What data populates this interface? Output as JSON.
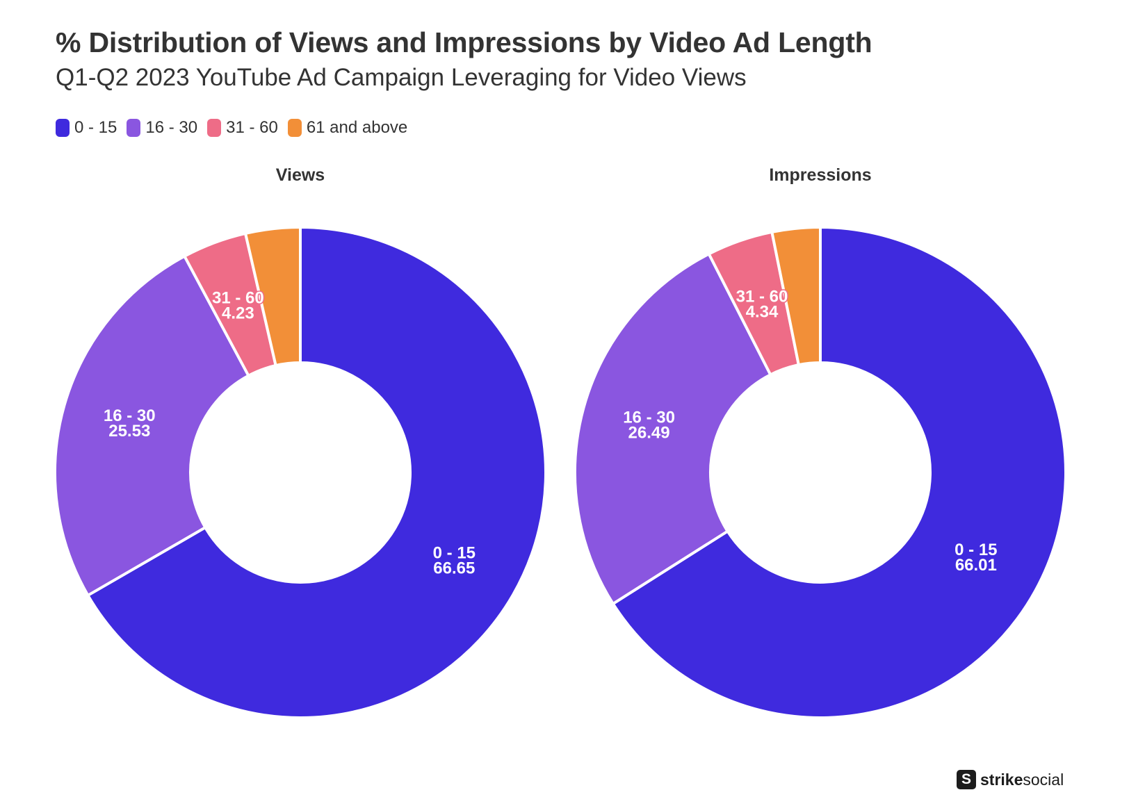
{
  "title": "% Distribution of Views and Impressions by Video Ad Length",
  "subtitle": "Q1-Q2 2023 YouTube Ad Campaign Leveraging for Video Views",
  "legend": [
    {
      "label": "0 - 15",
      "color": "#3f2ade"
    },
    {
      "label": "16 - 30",
      "color": "#8a56e0"
    },
    {
      "label": "31 - 60",
      "color": "#ee6c87"
    },
    {
      "label": "61 and above",
      "color": "#f28f38"
    }
  ],
  "brand": {
    "bold": "strike",
    "light": "social",
    "icon": "strike-social-logo-icon"
  },
  "chart_data": [
    {
      "type": "pie",
      "title": "Views",
      "categories": [
        "0 - 15",
        "16 - 30",
        "31 - 60",
        "61 and above"
      ],
      "values": [
        66.65,
        25.53,
        4.23,
        3.59
      ],
      "labels": [
        "66.65",
        "25.53",
        "4.23",
        ""
      ],
      "colors": [
        "#3f2ade",
        "#8a56e0",
        "#ee6c87",
        "#f28f38"
      ]
    },
    {
      "type": "pie",
      "title": "Impressions",
      "categories": [
        "0 - 15",
        "16 - 30",
        "31 - 60",
        "61 and above"
      ],
      "values": [
        66.01,
        26.49,
        4.34,
        3.16
      ],
      "labels": [
        "66.01",
        "26.49",
        "4.34",
        ""
      ],
      "colors": [
        "#3f2ade",
        "#8a56e0",
        "#ee6c87",
        "#f28f38"
      ]
    }
  ]
}
